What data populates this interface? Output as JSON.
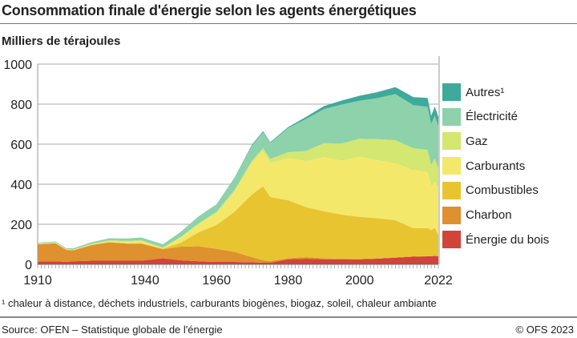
{
  "title": "Consommation finale d'énergie selon les agents énergétiques",
  "footnote": "¹ chaleur à distance, déchets industriels, carburants biogènes, biogaz, soleil, chaleur ambiante",
  "source": "Source: OFEN – Statistique globale de l'énergie",
  "copyright": "© OFS 2023",
  "chart_data": {
    "type": "area",
    "stacked": true,
    "title": "Consommation finale d'énergie selon les agents énergétiques",
    "ylabel": "Milliers de térajoules",
    "ylim": [
      0,
      1000
    ],
    "xlim": [
      1910,
      2022
    ],
    "yticks": [
      "0",
      "200",
      "400",
      "600",
      "800",
      "1000"
    ],
    "xticks": [
      "1910",
      "1940",
      "1960",
      "1980",
      "2000",
      "2022"
    ],
    "grid": true,
    "legend": "right",
    "x": [
      1910,
      1915,
      1918,
      1920,
      1925,
      1930,
      1935,
      1939,
      1945,
      1950,
      1955,
      1960,
      1965,
      1970,
      1973,
      1975,
      1980,
      1985,
      1990,
      1995,
      2000,
      2005,
      2010,
      2015,
      2019,
      2020,
      2021,
      2022
    ],
    "series": [
      {
        "name": "Énergie du bois",
        "color": "#d0443a",
        "values": [
          15,
          15,
          12,
          15,
          18,
          18,
          18,
          18,
          30,
          20,
          15,
          12,
          12,
          10,
          8,
          8,
          25,
          28,
          25,
          25,
          25,
          28,
          33,
          38,
          40,
          40,
          42,
          40
        ]
      },
      {
        "name": "Charbon",
        "color": "#df902f",
        "values": [
          85,
          90,
          60,
          55,
          78,
          92,
          85,
          85,
          45,
          68,
          75,
          65,
          50,
          25,
          12,
          8,
          5,
          8,
          5,
          3,
          2,
          2,
          2,
          2,
          1,
          1,
          1,
          1
        ]
      },
      {
        "name": "Combustibles",
        "color": "#e8c431",
        "values": [
          0,
          0,
          0,
          0,
          0,
          1,
          2,
          3,
          3,
          20,
          70,
          120,
          200,
          315,
          370,
          320,
          290,
          250,
          235,
          220,
          210,
          200,
          185,
          140,
          140,
          130,
          140,
          105
        ]
      },
      {
        "name": "Carburants",
        "color": "#f4e86a",
        "values": [
          2,
          2,
          1,
          2,
          3,
          5,
          8,
          10,
          3,
          25,
          40,
          60,
          100,
          160,
          175,
          170,
          210,
          230,
          270,
          270,
          300,
          290,
          285,
          290,
          280,
          220,
          230,
          235
        ]
      },
      {
        "name": "Gaz",
        "color": "#d4e770",
        "values": [
          3,
          3,
          2,
          2,
          3,
          4,
          4,
          4,
          3,
          4,
          5,
          5,
          8,
          10,
          15,
          20,
          30,
          50,
          70,
          85,
          90,
          105,
          115,
          110,
          110,
          105,
          115,
          100
        ]
      },
      {
        "name": "Électricité",
        "color": "#8dd2aa",
        "values": [
          3,
          4,
          5,
          6,
          8,
          10,
          12,
          14,
          16,
          25,
          35,
          38,
          60,
          75,
          80,
          80,
          120,
          160,
          170,
          195,
          190,
          205,
          230,
          215,
          215,
          205,
          215,
          210
        ]
      },
      {
        "name": "Autres¹",
        "color": "#3fa99c",
        "values": [
          0,
          0,
          0,
          0,
          0,
          0,
          0,
          0,
          0,
          0,
          0,
          0,
          2,
          5,
          5,
          4,
          5,
          10,
          15,
          20,
          25,
          30,
          35,
          40,
          45,
          40,
          45,
          45
        ]
      }
    ]
  }
}
